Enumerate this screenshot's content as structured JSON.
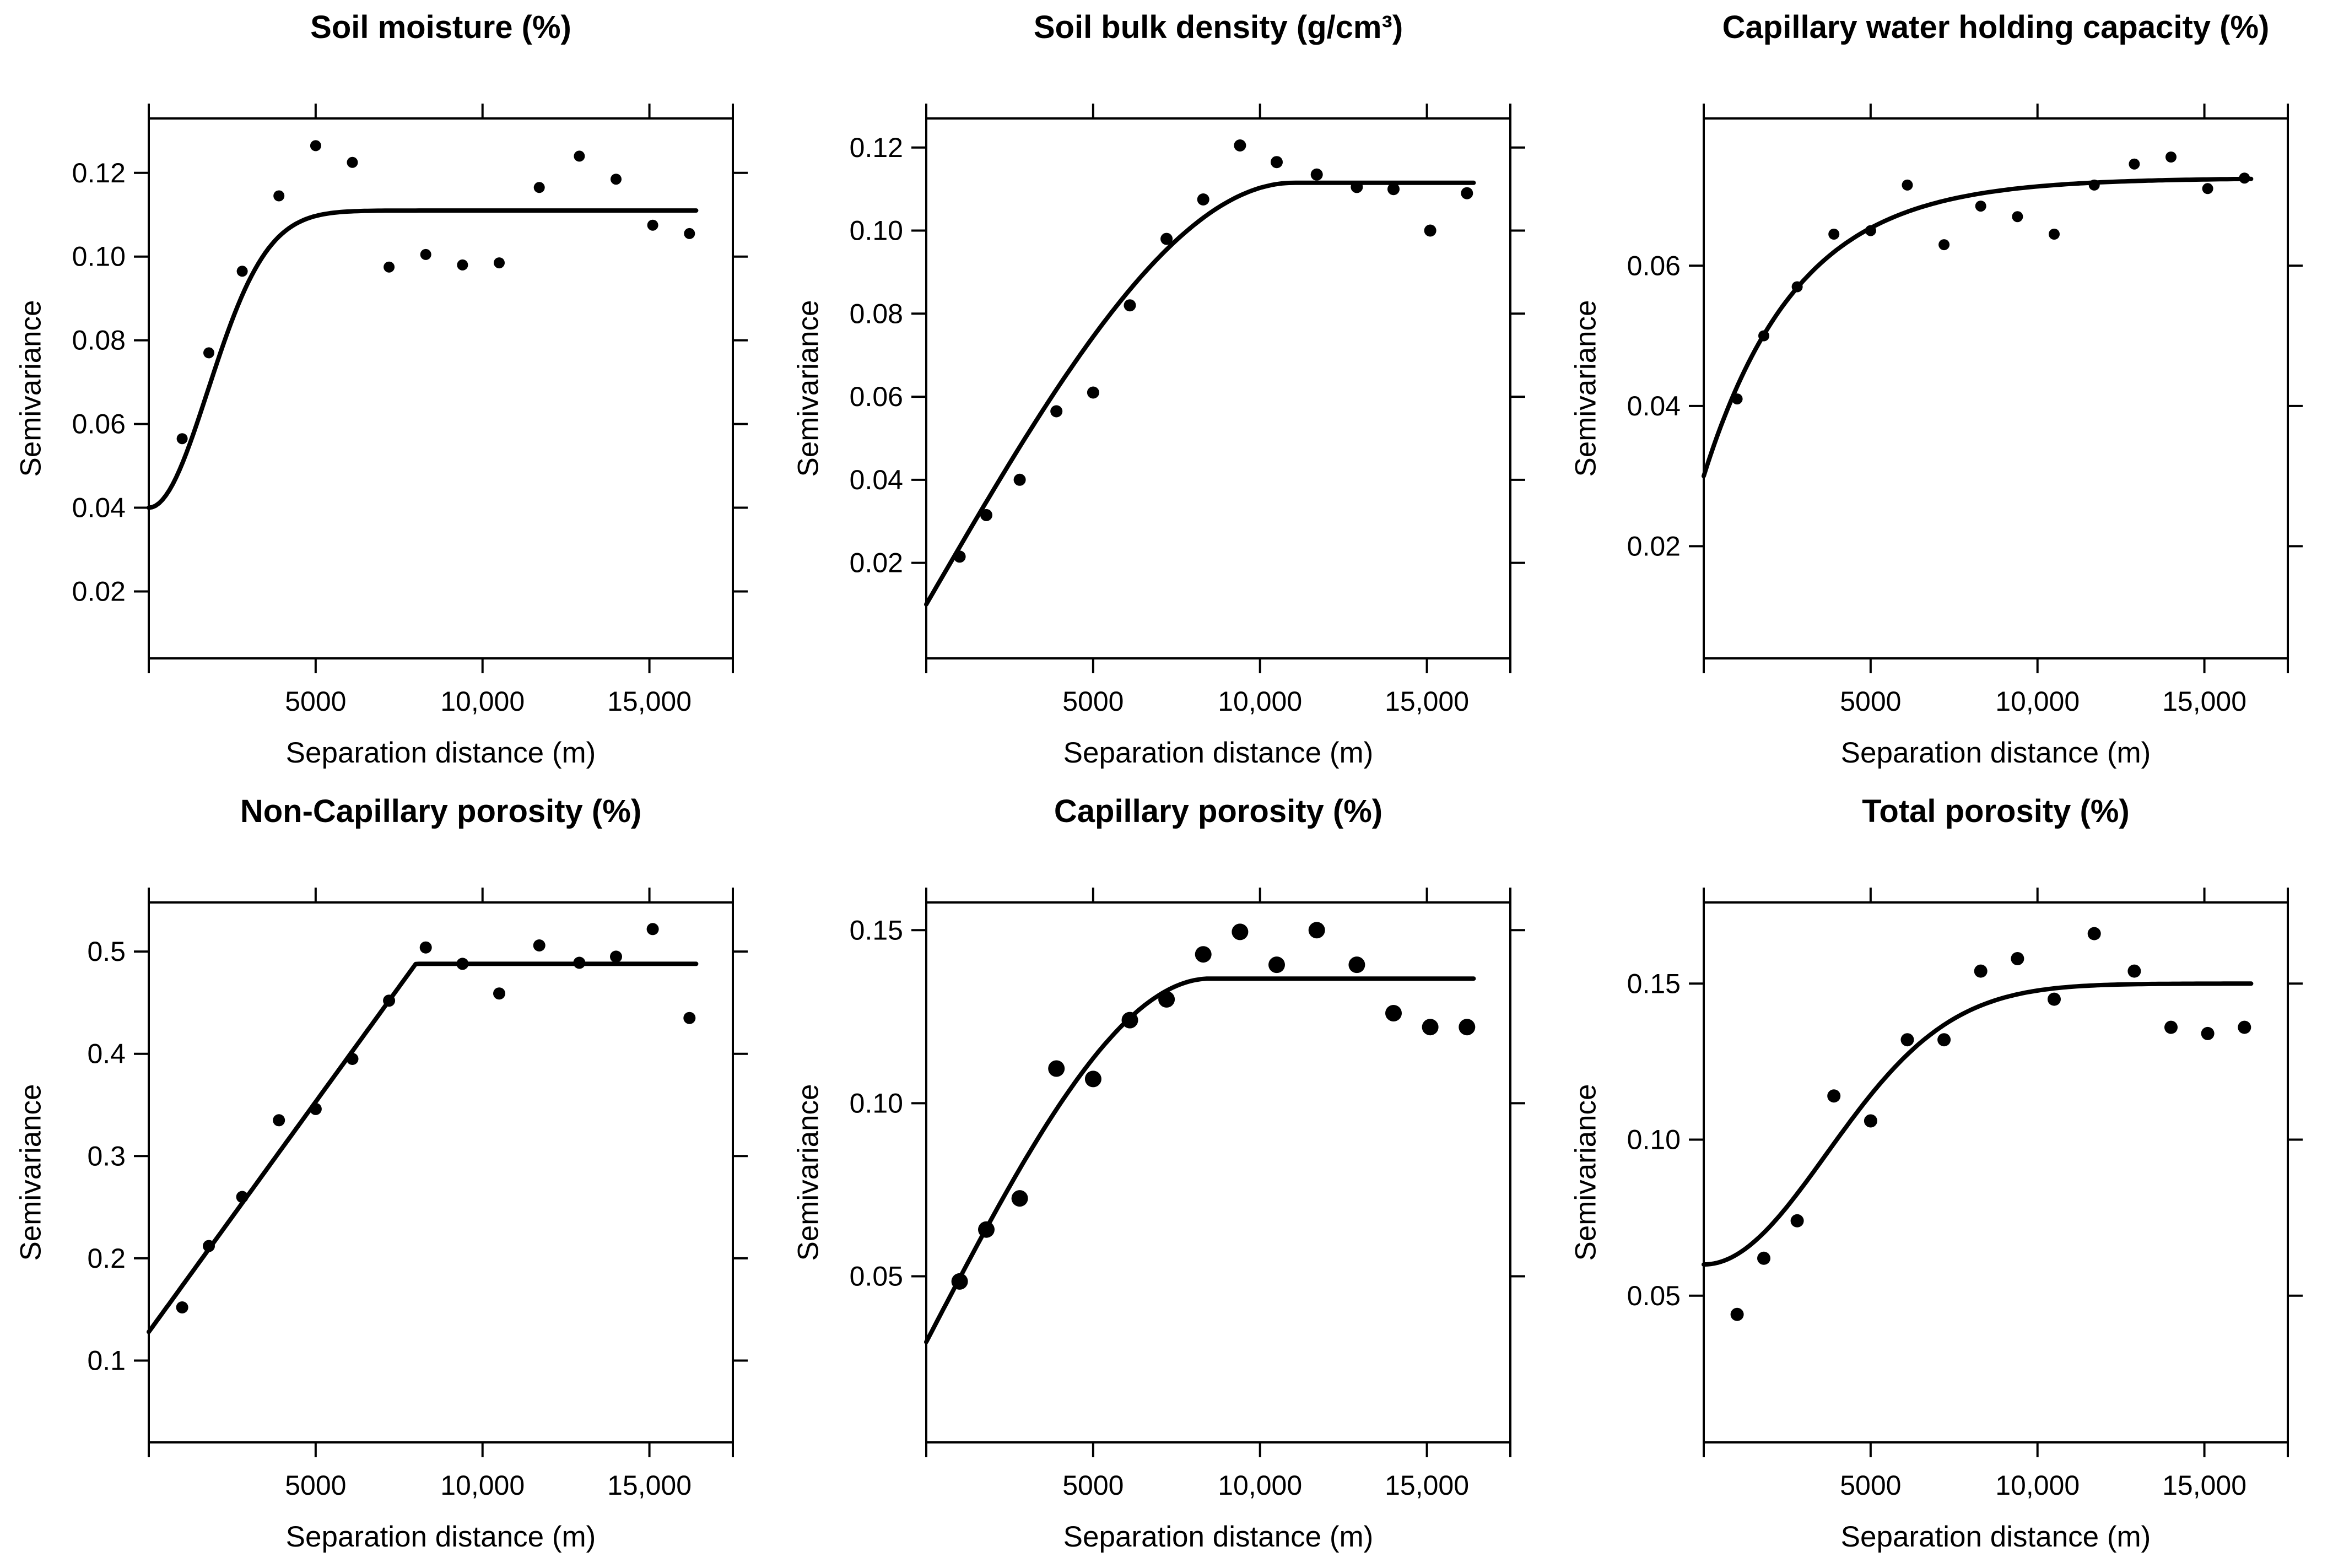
{
  "figure": {
    "background": "#ffffff",
    "foreground": "#000000",
    "n_panels": 6,
    "layout": "2 rows x 3 columns"
  },
  "chart_data": [
    {
      "type": "scatter",
      "title": "Soil moisture (%)",
      "xlabel": "Separation distance (m)",
      "ylabel": "Semivariance",
      "x": [
        1000,
        1800,
        2800,
        3900,
        5000,
        6100,
        7200,
        8300,
        9400,
        10500,
        11700,
        12900,
        14000,
        15100,
        16200
      ],
      "y": [
        0.0565,
        0.077,
        0.0965,
        0.1145,
        0.1265,
        0.1225,
        0.0975,
        0.1005,
        0.098,
        0.0985,
        0.1165,
        0.124,
        0.1185,
        0.1075,
        0.1055
      ],
      "xlim": [
        0,
        17500
      ],
      "ylim": [
        0.004,
        0.133
      ],
      "xtick_values": [
        5000,
        10000,
        15000
      ],
      "xtick_labels": [
        "5000",
        "10,000",
        "15,000"
      ],
      "ytick_values": [
        0.02,
        0.04,
        0.06,
        0.08,
        0.1,
        0.12
      ],
      "ytick_labels": [
        "0.02",
        "0.04",
        "0.06",
        "0.08",
        "0.10",
        "0.12"
      ],
      "model": {
        "type": "gaussian",
        "nugget": 0.04,
        "sill": 0.111,
        "range": 2500
      },
      "curve_end": 16400,
      "marker_radius": 10,
      "point_color": "#000000",
      "line_color": "#000000",
      "legend": "none",
      "grid": "off"
    },
    {
      "type": "scatter",
      "title": "Soil bulk density (g/cm³)",
      "xlabel": "Separation distance (m)",
      "ylabel": "Semivariance",
      "x": [
        1000,
        1800,
        2800,
        3900,
        5000,
        6100,
        7200,
        8300,
        9400,
        10500,
        11700,
        12900,
        14000,
        15100,
        16200
      ],
      "y": [
        0.0215,
        0.0315,
        0.04,
        0.0565,
        0.061,
        0.082,
        0.098,
        0.1075,
        0.1205,
        0.1165,
        0.1135,
        0.1105,
        0.11,
        0.1,
        0.109
      ],
      "xlim": [
        0,
        17500
      ],
      "ylim": [
        -0.003,
        0.127
      ],
      "xtick_values": [
        5000,
        10000,
        15000
      ],
      "xtick_labels": [
        "5000",
        "10,000",
        "15,000"
      ],
      "ytick_values": [
        0.02,
        0.04,
        0.06,
        0.08,
        0.1,
        0.12
      ],
      "ytick_labels": [
        "0.02",
        "0.04",
        "0.06",
        "0.08",
        "0.10",
        "0.12"
      ],
      "model": {
        "type": "spherical",
        "nugget": 0.01,
        "sill": 0.1115,
        "range": 11000
      },
      "curve_end": 16400,
      "marker_radius": 11,
      "point_color": "#000000",
      "line_color": "#000000",
      "legend": "none",
      "grid": "off"
    },
    {
      "type": "scatter",
      "title": "Capillary water holding capacity (%)",
      "xlabel": "Separation distance (m)",
      "ylabel": "Semivariance",
      "x": [
        1000,
        1800,
        2800,
        3900,
        5000,
        6100,
        7200,
        8300,
        9400,
        10500,
        11700,
        12900,
        14000,
        15100,
        16200
      ],
      "y": [
        0.041,
        0.05,
        0.057,
        0.0645,
        0.065,
        0.0715,
        0.063,
        0.0685,
        0.067,
        0.0645,
        0.0715,
        0.0745,
        0.0755,
        0.071,
        0.0725
      ],
      "xlim": [
        0,
        17500
      ],
      "ylim": [
        0.004,
        0.081
      ],
      "xtick_values": [
        5000,
        10000,
        15000
      ],
      "xtick_labels": [
        "5000",
        "10,000",
        "15,000"
      ],
      "ytick_values": [
        0.02,
        0.04,
        0.06
      ],
      "ytick_labels": [
        "0.02",
        "0.04",
        "0.06"
      ],
      "model": {
        "type": "exponential",
        "nugget": 0.03,
        "sill": 0.0725,
        "range": 2800
      },
      "curve_end": 16400,
      "marker_radius": 10,
      "point_color": "#000000",
      "line_color": "#000000",
      "legend": "none",
      "grid": "off"
    },
    {
      "type": "scatter",
      "title": "Non-Capillary porosity (%)",
      "xlabel": "Separation distance (m)",
      "ylabel": "Semivariance",
      "x": [
        1000,
        1800,
        2800,
        3900,
        5000,
        6100,
        7200,
        8300,
        9400,
        10500,
        11700,
        12900,
        14000,
        15100,
        16200
      ],
      "y": [
        0.152,
        0.212,
        0.26,
        0.335,
        0.346,
        0.395,
        0.452,
        0.504,
        0.488,
        0.459,
        0.506,
        0.489,
        0.495,
        0.522,
        0.435
      ],
      "xlim": [
        0,
        17500
      ],
      "ylim": [
        0.02,
        0.548
      ],
      "xtick_values": [
        5000,
        10000,
        15000
      ],
      "xtick_labels": [
        "5000",
        "10,000",
        "15,000"
      ],
      "ytick_values": [
        0.1,
        0.2,
        0.3,
        0.4,
        0.5
      ],
      "ytick_labels": [
        "0.1",
        "0.2",
        "0.3",
        "0.4",
        "0.5"
      ],
      "model": {
        "type": "linear",
        "nugget": 0.128,
        "sill": 0.488,
        "range": 8000
      },
      "curve_end": 16400,
      "marker_radius": 11,
      "point_color": "#000000",
      "line_color": "#000000",
      "legend": "none",
      "grid": "off"
    },
    {
      "type": "scatter",
      "title": "Capillary porosity (%)",
      "xlabel": "Separation distance (m)",
      "ylabel": "Semivariance",
      "x": [
        1000,
        1800,
        2800,
        3900,
        5000,
        6100,
        7200,
        8300,
        9400,
        10500,
        11700,
        12900,
        14000,
        15100,
        16200
      ],
      "y": [
        0.0485,
        0.0635,
        0.0725,
        0.11,
        0.107,
        0.124,
        0.13,
        0.143,
        0.1495,
        0.14,
        0.15,
        0.14,
        0.126,
        0.122,
        0.122
      ],
      "xlim": [
        0,
        17500
      ],
      "ylim": [
        0.002,
        0.158
      ],
      "xtick_values": [
        5000,
        10000,
        15000
      ],
      "xtick_labels": [
        "5000",
        "10,000",
        "15,000"
      ],
      "ytick_values": [
        0.05,
        0.1,
        0.15
      ],
      "ytick_labels": [
        "0.05",
        "0.10",
        "0.15"
      ],
      "model": {
        "type": "spherical",
        "nugget": 0.031,
        "sill": 0.136,
        "range": 8500
      },
      "curve_end": 16400,
      "marker_radius": 15,
      "point_color": "#000000",
      "line_color": "#000000",
      "legend": "none",
      "grid": "off"
    },
    {
      "type": "scatter",
      "title": "Total porosity (%)",
      "xlabel": "Separation distance (m)",
      "ylabel": "Semivariance",
      "x": [
        1000,
        1800,
        2800,
        3900,
        5000,
        6100,
        7200,
        8300,
        9400,
        10500,
        11700,
        12900,
        14000,
        15100,
        16200
      ],
      "y": [
        0.044,
        0.062,
        0.074,
        0.114,
        0.106,
        0.132,
        0.132,
        0.154,
        0.158,
        0.145,
        0.166,
        0.154,
        0.136,
        0.134,
        0.136
      ],
      "xlim": [
        0,
        17500
      ],
      "ylim": [
        0.003,
        0.176
      ],
      "xtick_values": [
        5000,
        10000,
        15000
      ],
      "xtick_labels": [
        "5000",
        "10,000",
        "15,000"
      ],
      "ytick_values": [
        0.05,
        0.1,
        0.15
      ],
      "ytick_labels": [
        "0.05",
        "0.10",
        "0.15"
      ],
      "model": {
        "type": "gaussian",
        "nugget": 0.06,
        "sill": 0.15,
        "range": 5200
      },
      "curve_end": 16400,
      "marker_radius": 12,
      "point_color": "#000000",
      "line_color": "#000000",
      "legend": "none",
      "grid": "off"
    }
  ]
}
